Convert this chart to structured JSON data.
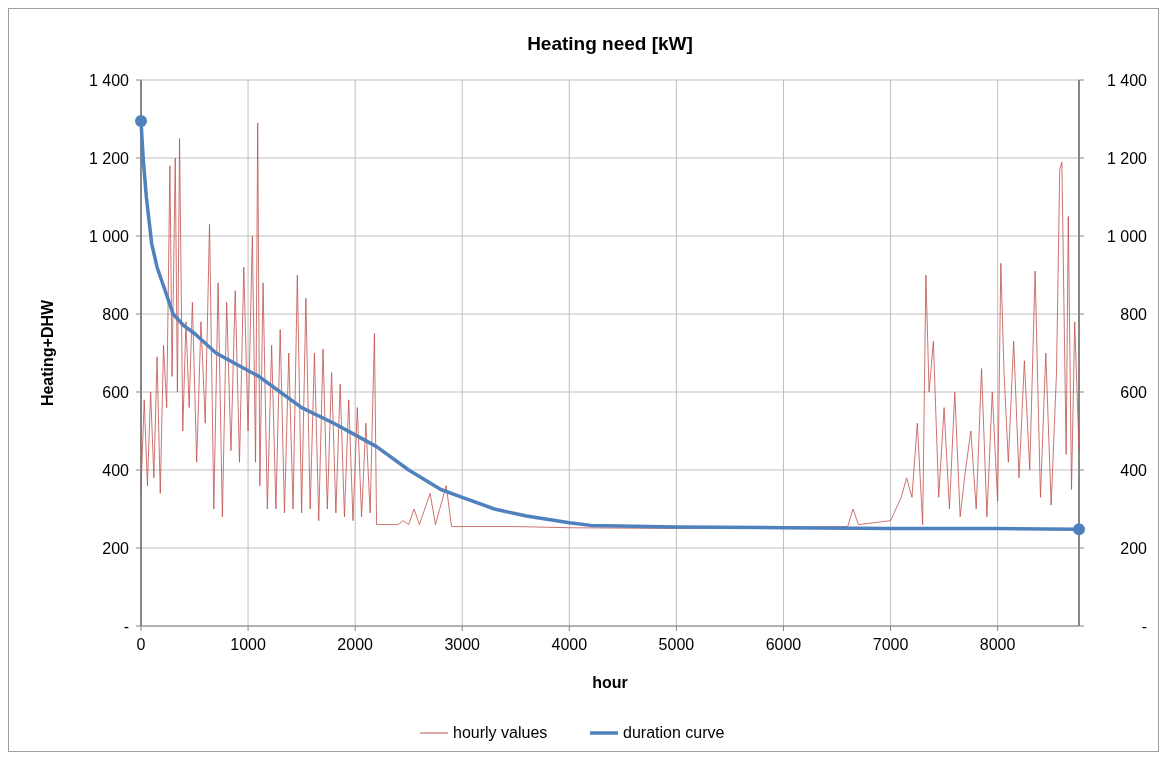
{
  "chart_data": {
    "type": "line",
    "title": "Heating need [kW]",
    "xlabel": "hour",
    "ylabel": "Heating+DHW",
    "xlim": [
      0,
      8760
    ],
    "xticks": [
      0,
      1000,
      2000,
      3000,
      4000,
      5000,
      6000,
      7000,
      8000
    ],
    "ylim": [
      0,
      1400
    ],
    "yticks": [
      {
        "value": 0,
        "label": "-"
      },
      200,
      400,
      600,
      800,
      {
        "value": 1000,
        "label": "1 000"
      },
      {
        "value": 1200,
        "label": "1 200"
      },
      {
        "value": 1400,
        "label": "1 400"
      }
    ],
    "y2lim": [
      0,
      1400
    ],
    "y2ticks": [
      {
        "value": 0,
        "label": "-"
      },
      200,
      400,
      600,
      800,
      {
        "value": 1000,
        "label": "1 000"
      },
      {
        "value": 1200,
        "label": "1 200"
      },
      {
        "value": 1400,
        "label": "1 400"
      }
    ],
    "grid": true,
    "legend": "bottom",
    "line_style": "solid",
    "series": [
      {
        "name": "hourly values",
        "color": "#c0504d",
        "x": [
          0,
          30,
          60,
          90,
          120,
          150,
          180,
          210,
          240,
          270,
          290,
          320,
          340,
          360,
          390,
          420,
          450,
          480,
          520,
          560,
          600,
          640,
          680,
          720,
          760,
          800,
          840,
          880,
          920,
          960,
          1000,
          1040,
          1070,
          1090,
          1110,
          1140,
          1180,
          1220,
          1260,
          1300,
          1340,
          1380,
          1420,
          1460,
          1500,
          1540,
          1580,
          1620,
          1660,
          1700,
          1740,
          1780,
          1820,
          1860,
          1900,
          1940,
          1980,
          2020,
          2060,
          2100,
          2140,
          2180,
          2200,
          2400,
          2450,
          2500,
          2550,
          2600,
          2700,
          2750,
          2850,
          2900,
          3500,
          4000,
          5000,
          6600,
          6650,
          6700,
          7000,
          7100,
          7150,
          7200,
          7250,
          7300,
          7330,
          7360,
          7400,
          7450,
          7500,
          7550,
          7600,
          7650,
          7700,
          7750,
          7800,
          7850,
          7900,
          7950,
          8000,
          8030,
          8060,
          8100,
          8150,
          8200,
          8250,
          8300,
          8350,
          8400,
          8450,
          8500,
          8550,
          8580,
          8600,
          8640,
          8660,
          8690,
          8720,
          8760
        ],
        "values": [
          350,
          580,
          360,
          600,
          380,
          690,
          340,
          720,
          560,
          1180,
          640,
          1200,
          600,
          1250,
          500,
          780,
          560,
          830,
          420,
          780,
          520,
          1030,
          300,
          880,
          280,
          830,
          450,
          860,
          420,
          920,
          500,
          1000,
          420,
          1290,
          360,
          880,
          300,
          720,
          300,
          760,
          290,
          700,
          300,
          900,
          290,
          840,
          300,
          700,
          270,
          710,
          300,
          650,
          290,
          620,
          280,
          580,
          270,
          560,
          280,
          520,
          290,
          750,
          260,
          260,
          270,
          260,
          300,
          260,
          340,
          260,
          360,
          255,
          255,
          252,
          250,
          255,
          300,
          260,
          270,
          330,
          380,
          330,
          520,
          260,
          900,
          600,
          730,
          330,
          560,
          300,
          600,
          280,
          400,
          500,
          300,
          660,
          280,
          600,
          320,
          930,
          650,
          420,
          730,
          380,
          680,
          400,
          910,
          330,
          700,
          310,
          650,
          1170,
          1190,
          440,
          1050,
          350,
          780,
          450
        ]
      },
      {
        "name": "duration curve",
        "color": "#4f81bd",
        "x": [
          0,
          20,
          50,
          100,
          150,
          200,
          300,
          400,
          500,
          700,
          900,
          1100,
          1300,
          1500,
          1800,
          2000,
          2200,
          2500,
          2800,
          3000,
          3300,
          3600,
          4000,
          4200,
          5000,
          6000,
          7000,
          8000,
          8760
        ],
        "values": [
          1295,
          1200,
          1100,
          980,
          920,
          880,
          800,
          770,
          750,
          700,
          670,
          640,
          600,
          560,
          520,
          490,
          460,
          400,
          350,
          330,
          300,
          282,
          265,
          258,
          254,
          252,
          250,
          250,
          248
        ]
      },
      {
        "type": "scatter",
        "color": "#4f81bd",
        "marker": "circle",
        "x": [
          0,
          8760
        ],
        "values": [
          1295,
          248
        ]
      }
    ]
  }
}
